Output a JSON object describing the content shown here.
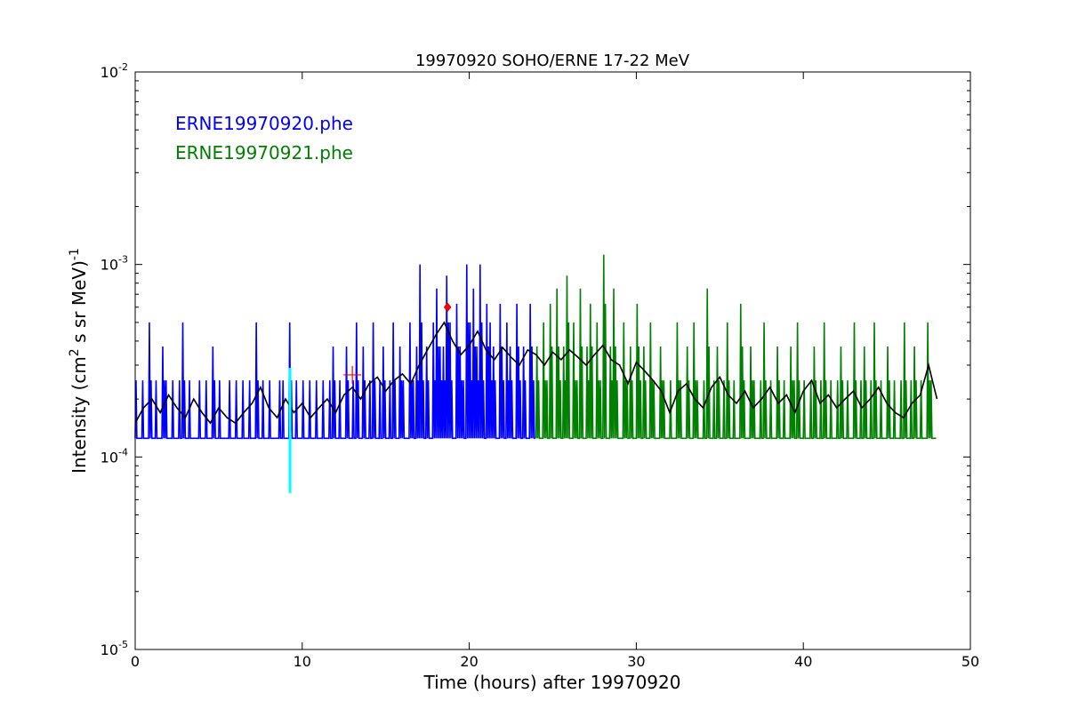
{
  "chart_data": {
    "type": "line",
    "title": "19970920 SOHO/ERNE 17-22 MeV",
    "xlabel": "Time (hours) after 19970920",
    "ylabel_main": "Intensity (cm",
    "ylabel_sup1": "2",
    "ylabel_mid": "  s sr MeV)",
    "ylabel_sup2": "-1",
    "xlim": [
      0,
      50
    ],
    "ylim": [
      1e-05,
      0.01
    ],
    "yscale": "log",
    "xticks": [
      "0",
      "10",
      "20",
      "30",
      "40",
      "50"
    ],
    "yticks": [
      {
        "base": "10",
        "exp": "-5"
      },
      {
        "base": "10",
        "exp": "-4"
      },
      {
        "base": "10",
        "exp": "-3"
      },
      {
        "base": "10",
        "exp": "-2"
      }
    ],
    "legend_placement": "top-left",
    "raw_unit": 0.000125,
    "series": [
      {
        "name": "ERNE19970920.phe",
        "color": "#0000ff",
        "x_start": 0,
        "x_step": 0.2,
        "values_in_units": [
          2,
          1,
          2,
          1,
          4,
          1,
          2,
          1,
          3,
          2,
          1,
          2,
          1,
          2,
          4,
          1,
          2,
          1,
          1,
          2,
          1,
          2,
          1,
          3,
          1,
          2,
          1,
          1,
          2,
          1,
          2,
          1,
          2,
          1,
          2,
          1,
          4,
          1,
          2,
          1,
          2,
          1,
          1,
          2,
          2,
          1,
          4,
          1,
          2,
          1,
          2,
          1,
          2,
          1,
          2,
          1,
          2,
          1,
          2,
          3,
          1,
          2,
          1,
          3,
          1,
          2,
          4,
          1,
          3,
          1,
          2,
          4,
          1,
          2,
          3,
          1,
          2,
          4,
          1,
          3,
          2,
          1,
          4,
          2,
          3,
          8,
          2,
          3,
          1,
          4,
          6,
          3,
          3,
          7,
          4,
          1,
          5,
          3,
          2,
          8,
          4,
          6,
          3,
          8,
          2,
          5,
          4,
          3,
          1,
          5,
          2,
          4,
          3,
          1,
          5,
          2,
          3,
          1,
          5,
          2
        ]
      },
      {
        "name": "ERNE19970921.phe",
        "color": "#008000",
        "x_start": 24,
        "x_step": 0.2,
        "values_in_units": [
          3,
          1,
          4,
          2,
          5,
          1,
          6,
          2,
          3,
          7,
          1,
          4,
          2,
          6,
          1,
          3,
          5,
          1,
          4,
          2,
          9,
          1,
          3,
          6,
          2,
          1,
          4,
          2,
          3,
          1,
          5,
          2,
          3,
          1,
          4,
          2,
          1,
          3,
          2,
          1,
          2,
          1,
          4,
          2,
          1,
          3,
          1,
          4,
          2,
          1,
          2,
          6,
          1,
          2,
          3,
          1,
          2,
          4,
          1,
          2,
          1,
          5,
          2,
          1,
          3,
          2,
          1,
          2,
          4,
          1,
          2,
          1,
          3,
          1,
          2,
          1,
          3,
          2,
          4,
          1,
          2,
          1,
          2,
          3,
          1,
          2,
          4,
          1,
          2,
          1,
          2,
          3,
          1,
          2,
          1,
          4,
          1,
          2,
          3,
          1,
          2,
          4,
          1,
          2,
          1,
          3,
          1,
          2,
          1,
          2,
          4,
          1,
          2,
          3,
          1,
          2,
          1,
          4,
          2,
          1
        ]
      }
    ],
    "smoothed": {
      "name": "smoothed",
      "color": "#000000",
      "x_start": 0,
      "x_step": 0.5,
      "unit": 0.0001,
      "values": [
        1.5,
        1.8,
        2.0,
        1.7,
        2.1,
        1.8,
        1.6,
        2.0,
        1.7,
        1.5,
        1.8,
        1.6,
        1.5,
        1.7,
        1.9,
        2.3,
        1.8,
        1.6,
        2.0,
        1.7,
        1.9,
        1.6,
        1.8,
        2.0,
        1.7,
        2.1,
        2.3,
        2.0,
        2.4,
        2.6,
        2.2,
        2.5,
        2.7,
        2.4,
        3.0,
        3.6,
        4.3,
        5.0,
        4.0,
        3.4,
        3.8,
        4.5,
        3.6,
        3.2,
        3.7,
        3.3,
        3.0,
        3.6,
        3.4,
        3.0,
        3.5,
        3.2,
        3.6,
        3.3,
        3.0,
        3.4,
        3.8,
        3.2,
        3.0,
        2.4,
        3.1,
        2.8,
        2.5,
        2.2,
        1.7,
        2.2,
        2.4,
        2.0,
        1.8,
        2.3,
        2.6,
        2.1,
        1.9,
        2.2,
        1.8,
        2.0,
        2.3,
        1.9,
        2.1,
        1.7,
        2.2,
        2.5,
        1.9,
        2.1,
        1.8,
        2.0,
        2.2,
        1.8,
        2.0,
        2.3,
        1.9,
        1.7,
        1.6,
        1.9,
        2.1,
        3.0,
        2.0
      ]
    },
    "onset_marker": {
      "x": 9.27,
      "y_low": 6.5e-05,
      "y_high": 0.00029,
      "color": "#00ffff"
    },
    "cross_marker": {
      "x": 13.0,
      "y": 0.000267,
      "color": "#ff0000"
    },
    "peak_marker": {
      "x": 18.7,
      "y": 0.0006,
      "color": "#ff0000"
    }
  }
}
